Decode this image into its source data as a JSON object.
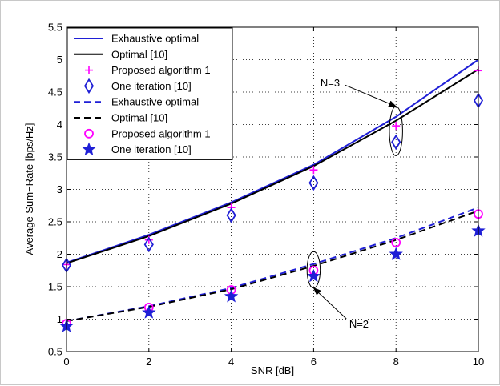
{
  "chart_data": {
    "type": "line",
    "title": "",
    "xlabel": "SNR [dB]",
    "ylabel": "Average Sum−Rate [bps/Hz]",
    "xlim": [
      0,
      10
    ],
    "ylim": [
      0.5,
      5.5
    ],
    "x_ticks": [
      0,
      2,
      4,
      6,
      8,
      10
    ],
    "y_ticks": [
      0.5,
      1,
      1.5,
      2,
      2.5,
      3,
      3.5,
      4,
      4.5,
      5,
      5.5
    ],
    "x_tick_labels": [
      "0",
      "2",
      "4",
      "6",
      "8",
      "10"
    ],
    "y_tick_labels": [
      "0.5",
      "1",
      "1.5",
      "2",
      "2.5",
      "3",
      "3.5",
      "4",
      "4.5",
      "5",
      "5.5"
    ],
    "grid": true,
    "legend_position": "top-left",
    "x": [
      0,
      2,
      4,
      6,
      8,
      10
    ],
    "series": [
      {
        "name": "Exhaustive optimal",
        "values": [
          1.87,
          2.3,
          2.8,
          3.38,
          4.12,
          5.0
        ],
        "style": "solid",
        "marker": "none",
        "color": "#1f1fd6"
      },
      {
        "name": "Optimal [10]",
        "values": [
          1.86,
          2.28,
          2.78,
          3.36,
          4.06,
          4.85
        ],
        "style": "solid",
        "marker": "none",
        "color": "#000000"
      },
      {
        "name": "Proposed algorithm 1",
        "values": [
          1.84,
          2.22,
          2.72,
          3.3,
          3.98,
          4.83
        ],
        "style": "none",
        "marker": "plus",
        "color": "#ff00ff"
      },
      {
        "name": "One iteration [10]",
        "values": [
          1.83,
          2.15,
          2.6,
          3.1,
          3.73,
          4.37
        ],
        "style": "none",
        "marker": "diamond",
        "color": "#1f1fd6"
      },
      {
        "name": "Exhaustive optimal",
        "values": [
          0.97,
          1.2,
          1.48,
          1.85,
          2.25,
          2.72
        ],
        "style": "dashed",
        "marker": "none",
        "color": "#1f1fd6"
      },
      {
        "name": "Optimal [10]",
        "values": [
          0.97,
          1.19,
          1.46,
          1.82,
          2.22,
          2.67
        ],
        "style": "dashed",
        "marker": "none",
        "color": "#000000"
      },
      {
        "name": "Proposed algorithm 1",
        "values": [
          0.93,
          1.18,
          1.45,
          1.75,
          2.18,
          2.62
        ],
        "style": "none",
        "marker": "circle",
        "color": "#ff00ff"
      },
      {
        "name": "One iteration [10]",
        "values": [
          0.89,
          1.1,
          1.35,
          1.66,
          2.0,
          2.36
        ],
        "style": "none",
        "marker": "star",
        "color": "#1f1fd6"
      }
    ],
    "annotations": [
      {
        "text": "N=3",
        "ellipse_center": [
          8,
          3.9
        ],
        "ellipse_radius": [
          0.16,
          0.38
        ],
        "label_at": [
          6.4,
          4.65
        ],
        "arrow_to": [
          8,
          4.28
        ]
      },
      {
        "text": "N=2",
        "ellipse_center": [
          6,
          1.76
        ],
        "ellipse_radius": [
          0.16,
          0.28
        ],
        "label_at": [
          7.1,
          0.93
        ],
        "arrow_to": [
          6,
          1.48
        ]
      }
    ]
  }
}
